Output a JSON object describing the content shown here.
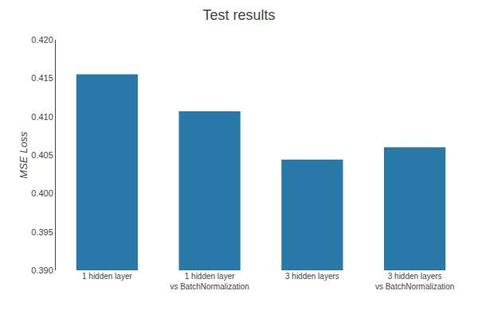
{
  "chart_data": {
    "type": "bar",
    "title": "Test results",
    "categories": [
      "1 hidden layer",
      "1 hidden layer\nvs BatchNormalization",
      "3 hidden layers",
      "3 hidden layers\nvs BatchNormalization"
    ],
    "values": [
      0.4155,
      0.4107,
      0.4044,
      0.406
    ],
    "color": "#2878a8",
    "ylabel": "MSE Loss",
    "ylim": [
      0.39,
      0.42
    ],
    "yticks": [
      {
        "value": 0.39,
        "label": "0.390"
      },
      {
        "value": 0.395,
        "label": "0.395"
      },
      {
        "value": 0.4,
        "label": "0.400"
      },
      {
        "value": 0.405,
        "label": "0.405"
      },
      {
        "value": 0.41,
        "label": "0.410"
      },
      {
        "value": 0.415,
        "label": "0.415"
      },
      {
        "value": 0.42,
        "label": "0.420"
      }
    ],
    "grid": false
  }
}
